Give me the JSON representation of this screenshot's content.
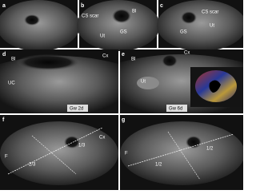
{
  "panels": [
    {
      "letter": "a",
      "labels": []
    },
    {
      "letter": "b",
      "labels": [
        "CS scar",
        "Ut",
        "GS",
        "Bl"
      ]
    },
    {
      "letter": "c",
      "labels": [
        "CS scar",
        "GS",
        "Ut"
      ]
    },
    {
      "letter": "d",
      "labels": [
        "Bl",
        "Cx",
        "UC",
        "Gw 2d"
      ]
    },
    {
      "letter": "e",
      "labels": [
        "Bl",
        "Cx",
        "Ut",
        "Gw 6d"
      ]
    },
    {
      "letter": "f",
      "labels": [
        "Cx",
        "1/3",
        "2/3",
        "F"
      ]
    },
    {
      "letter": "g",
      "labels": [
        "F",
        "1/2",
        "1/2"
      ]
    }
  ]
}
